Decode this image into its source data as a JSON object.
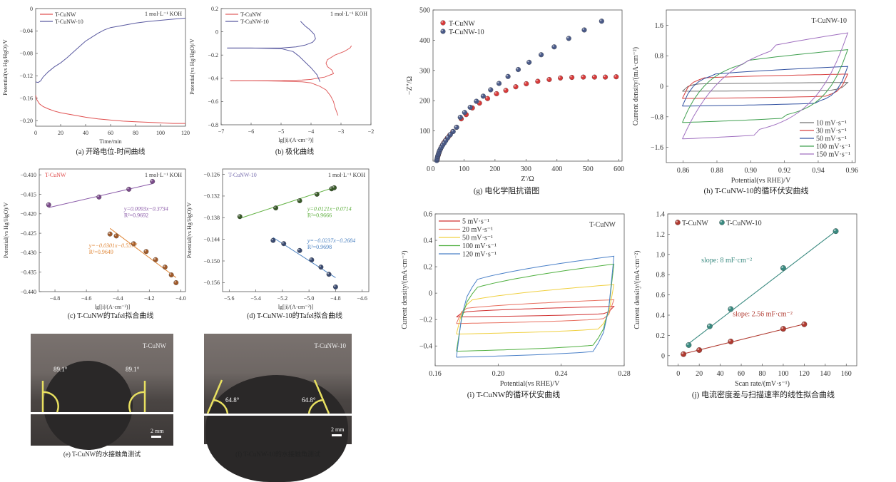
{
  "chart_data": [
    {
      "id": "a",
      "type": "line",
      "caption": "(a) 开路电位-时间曲线",
      "title": "",
      "xlabel": "Time/min",
      "ylabel": "Potential(vs Hg/HgO)/V",
      "annotation": "1 mol·L⁻¹ KOH",
      "xlim": [
        0,
        120
      ],
      "ylim": [
        -0.21,
        0
      ],
      "xticks": [
        0,
        20,
        40,
        60,
        80,
        100,
        120
      ],
      "yticks": [
        0,
        -0.04,
        -0.08,
        -0.12,
        -0.16,
        -0.2
      ],
      "ytick_labels": [
        "0",
        "−0.04",
        "−0.08",
        "−0.12",
        "−0.16",
        "−0.20"
      ],
      "legend": "top-left",
      "series": [
        {
          "name": "T-CuNW",
          "color": "#e05050",
          "x": [
            0,
            1,
            3,
            6,
            10,
            15,
            20,
            30,
            40,
            50,
            60,
            70,
            80,
            90,
            100,
            110,
            120
          ],
          "y": [
            -0.155,
            -0.163,
            -0.17,
            -0.175,
            -0.179,
            -0.183,
            -0.186,
            -0.19,
            -0.194,
            -0.197,
            -0.199,
            -0.201,
            -0.202,
            -0.203,
            -0.204,
            -0.205,
            -0.205
          ]
        },
        {
          "name": "T-CuNW-10",
          "color": "#5a5aa0",
          "x": [
            0,
            2,
            4,
            6,
            10,
            15,
            20,
            25,
            30,
            35,
            40,
            45,
            50,
            55,
            60,
            70,
            80,
            90,
            100,
            110,
            120
          ],
          "y": [
            -0.131,
            -0.132,
            -0.129,
            -0.122,
            -0.113,
            -0.104,
            -0.097,
            -0.088,
            -0.078,
            -0.068,
            -0.058,
            -0.051,
            -0.044,
            -0.038,
            -0.034,
            -0.03,
            -0.026,
            -0.023,
            -0.021,
            -0.019,
            -0.017
          ]
        }
      ]
    },
    {
      "id": "b",
      "type": "line",
      "caption": "(b) 极化曲线",
      "xlabel": "lg[|i|/(A·cm⁻²)]",
      "ylabel": "Potential(vs Hg/HgO)/V",
      "annotation": "1 mol·L⁻¹ KOH",
      "xlim": [
        -7,
        -2
      ],
      "ylim": [
        -0.8,
        0.2
      ],
      "xticks": [
        -7,
        -6,
        -5,
        -4,
        -3,
        -2
      ],
      "xtick_labels": [
        "−7",
        "−6",
        "−5",
        "−4",
        "−3",
        "−2"
      ],
      "yticks": [
        0.2,
        0,
        -0.2,
        -0.4,
        -0.6,
        -0.8
      ],
      "ytick_labels": [
        "0.2",
        "0",
        "−0.2",
        "−0.4",
        "−0.6",
        "−0.8"
      ],
      "legend": "top-left",
      "series": [
        {
          "name": "T-CuNW",
          "color": "#e06060",
          "x": [
            -6.7,
            -6.0,
            -5.0,
            -4.3,
            -4.0,
            -3.8,
            -3.55,
            -3.35,
            -3.25,
            -3.3,
            -3.45,
            -3.5,
            -3.45,
            -3.2,
            -2.9,
            -2.7,
            -2.65
          ],
          "y": [
            -0.42,
            -0.42,
            -0.42,
            -0.415,
            -0.41,
            -0.4,
            -0.39,
            -0.37,
            -0.36,
            -0.33,
            -0.3,
            -0.27,
            -0.24,
            -0.2,
            -0.17,
            -0.14,
            -0.12
          ],
          "x2": [
            -6.7,
            -6.0,
            -5.0,
            -4.3,
            -4.0,
            -3.7,
            -3.5,
            -3.35,
            -3.25,
            -3.2,
            -3.1
          ],
          "y2": [
            -0.42,
            -0.42,
            -0.425,
            -0.43,
            -0.44,
            -0.47,
            -0.5,
            -0.55,
            -0.6,
            -0.65,
            -0.72
          ]
        },
        {
          "name": "T-CuNW-10",
          "color": "#5a5aa0",
          "x": [
            -6.8,
            -6.0,
            -5.0,
            -4.5,
            -4.2,
            -3.95,
            -3.85,
            -3.9,
            -4.05,
            -4.2,
            -4.35
          ],
          "y": [
            -0.14,
            -0.14,
            -0.14,
            -0.13,
            -0.115,
            -0.09,
            -0.06,
            -0.02,
            0.02,
            0.05,
            0.09
          ],
          "x2": [
            -6.8,
            -6.0,
            -5.0,
            -4.6,
            -4.4,
            -4.2,
            -4.0,
            -3.8,
            -3.7
          ],
          "y2": [
            -0.14,
            -0.14,
            -0.145,
            -0.17,
            -0.21,
            -0.26,
            -0.31,
            -0.37,
            -0.43
          ]
        }
      ]
    },
    {
      "id": "c",
      "type": "scatter",
      "caption": "(c) T-CuNW的Tafel拟合曲线",
      "xlabel": "lg[|i|/(A·cm⁻²)]",
      "ylabel": "Potential(vs Hg/HgO)/V",
      "annotation": "1 mol·L⁻¹ KOH",
      "sample_label": "T-CuNW",
      "sample_color": "#e04848",
      "xlim": [
        -4.9,
        -3.97
      ],
      "ylim": [
        -0.44,
        -0.4085
      ],
      "xticks": [
        -4.8,
        -4.6,
        -4.4,
        -4.2,
        -4.0
      ],
      "xtick_labels": [
        "−4.8",
        "−4.6",
        "−4.4",
        "−4.2",
        "−4.0"
      ],
      "yticks": [
        -0.41,
        -0.415,
        -0.42,
        -0.425,
        -0.43,
        -0.435,
        -0.44
      ],
      "ytick_labels": [
        "−0.410",
        "−0.415",
        "−0.420",
        "−0.425",
        "−0.430",
        "−0.435",
        "−0.440"
      ],
      "series": [
        {
          "name": "anodic",
          "color": "#7a4a8a",
          "fit_color": "#8a5aa8",
          "x": [
            -4.84,
            -4.52,
            -4.33,
            -4.18
          ],
          "y": [
            -0.4177,
            -0.4157,
            -0.4137,
            -0.4117
          ],
          "fit": {
            "slope": 0.0093,
            "intercept": -0.3734,
            "x_range": [
              -4.84,
              -4.18
            ]
          },
          "equation": "y=0.0093x−0.3734",
          "r2": "R²=0.9692"
        },
        {
          "name": "cathodic",
          "color": "#a05a2a",
          "fit_color": "#e0883a",
          "x": [
            -4.45,
            -4.41,
            -4.3,
            -4.22,
            -4.16,
            -4.1,
            -4.06,
            -4.03
          ],
          "y": [
            -0.4252,
            -0.4257,
            -0.4277,
            -0.4297,
            -0.4318,
            -0.4337,
            -0.4357,
            -0.4377
          ],
          "fit": {
            "slope": -0.0301,
            "intercept": -0.5577,
            "x_range": [
              -4.45,
              -4.03
            ]
          },
          "equation": "y=−0.0301x−0.5577",
          "r2": "R²=0.9649"
        }
      ]
    },
    {
      "id": "d",
      "type": "scatter",
      "caption": "(d) T-CuNW-10的Tafel拟合曲线",
      "xlabel": "lg[|i|/(A·cm⁻²)]",
      "ylabel": "Potential(vs Hg/HgO)/V",
      "annotation": "1 mol·L⁻¹ KOH",
      "sample_label": "T-CuNW-10",
      "sample_color": "#7a70b0",
      "xlim": [
        -5.65,
        -4.55
      ],
      "ylim": [
        -0.1585,
        -0.1245
      ],
      "xticks": [
        -5.6,
        -5.4,
        -5.2,
        -5.0,
        -4.8,
        -4.6
      ],
      "xtick_labels": [
        "−5.6",
        "−5.4",
        "−5.2",
        "−5.0",
        "−4.8",
        "−4.6"
      ],
      "yticks": [
        -0.126,
        -0.132,
        -0.138,
        -0.144,
        -0.15,
        -0.156
      ],
      "ytick_labels": [
        "−0.126",
        "−0.132",
        "−0.138",
        "−0.144",
        "−0.150",
        "−0.156"
      ],
      "series": [
        {
          "name": "anodic",
          "color": "#3a5a2a",
          "fit_color": "#60b040",
          "x": [
            -5.52,
            -5.25,
            -5.07,
            -4.94,
            -4.83,
            -4.81
          ],
          "y": [
            -0.1377,
            -0.1353,
            -0.1333,
            -0.1315,
            -0.13,
            -0.1297
          ],
          "fit": {
            "slope": 0.0121,
            "intercept": -0.0714,
            "x_range": [
              -5.52,
              -4.81
            ]
          },
          "equation": "y=0.0121x−0.0714",
          "r2": "R²=0.9666"
        },
        {
          "name": "cathodic",
          "color": "#3a4a70",
          "fit_color": "#4a80c0",
          "x": [
            -5.27,
            -5.19,
            -5.07,
            -4.98,
            -4.91,
            -4.85,
            -4.8
          ],
          "y": [
            -0.1443,
            -0.1452,
            -0.1471,
            -0.1497,
            -0.1517,
            -0.1537,
            -0.1572
          ],
          "fit": {
            "slope": -0.0237,
            "intercept": -0.2684,
            "x_range": [
              -5.27,
              -4.8
            ]
          },
          "equation": "y=−0.0237x−0.2684",
          "r2": "R²=0.9698"
        }
      ]
    },
    {
      "id": "g",
      "type": "scatter",
      "caption": "(g) 电化学阻抗谱图",
      "xlabel": "Z′/Ω",
      "ylabel": "−Z″/Ω",
      "xlim": [
        0,
        610
      ],
      "ylim": [
        0,
        500
      ],
      "xticks": [
        0,
        100,
        200,
        300,
        400,
        500,
        600
      ],
      "yticks": [
        100,
        200,
        300,
        400,
        500
      ],
      "legend": "top-left",
      "series": [
        {
          "name": "T-CuNW",
          "color": "#d83a3a",
          "x": [
            13,
            14,
            15,
            17,
            19,
            21,
            24,
            27,
            31,
            35,
            40,
            46,
            54,
            64,
            76,
            91,
            107,
            127,
            150,
            176,
            205,
            235,
            267,
            301,
            338,
            375,
            411,
            448,
            485,
            521,
            556,
            591
          ],
          "y": [
            3,
            8,
            14,
            20,
            27,
            33,
            40,
            47,
            54,
            61,
            68,
            76,
            86,
            98,
            112,
            140,
            154,
            176,
            192,
            207,
            223,
            234,
            246,
            256,
            264,
            270,
            275,
            277,
            278,
            278,
            278,
            279
          ]
        },
        {
          "name": "T-CuNW-10",
          "color": "#4a5a88",
          "x": [
            12,
            13,
            14,
            15,
            17,
            19,
            21,
            24,
            27,
            31,
            36,
            41,
            48,
            56,
            65,
            76,
            88,
            102,
            120,
            140,
            162,
            186,
            213,
            242,
            275,
            310,
            349,
            391,
            438,
            488,
            544
          ],
          "y": [
            2,
            6,
            11,
            16,
            22,
            28,
            34,
            40,
            46,
            53,
            60,
            68,
            78,
            88,
            98,
            112,
            145,
            161,
            178,
            198,
            215,
            236,
            257,
            280,
            303,
            327,
            352,
            378,
            406,
            434,
            463
          ]
        }
      ]
    },
    {
      "id": "h",
      "type": "line",
      "caption": "(h) T-CuNW-10的循环伏安曲线",
      "xlabel": "Potential(vs RHE)/V",
      "ylabel": "Current density/(mA·cm⁻²)",
      "sample_label": "T-CuNW-10",
      "xlim": [
        0.85,
        0.962
      ],
      "ylim": [
        -2.0,
        2.0
      ],
      "xticks": [
        0.86,
        0.88,
        0.9,
        0.92,
        0.94,
        0.96
      ],
      "xtick_labels": [
        "0.86",
        "0.88",
        "0.90",
        "0.92",
        "0.94",
        "0.96"
      ],
      "yticks": [
        1.6,
        0.8,
        0,
        -0.8,
        -1.6
      ],
      "ytick_labels": [
        "1.6",
        "0.8",
        "0",
        "−0.8",
        "−1.6"
      ],
      "legend": "bottom-right",
      "cv_range": [
        0.8595,
        0.9575
      ],
      "series": [
        {
          "name": "10 mV·s⁻¹",
          "color": "#707070",
          "upper": [
            0.05,
            0.1
          ],
          "lower": [
            -0.13,
            -0.08
          ],
          "knee": 0.003
        },
        {
          "name": "30 mV·s⁻¹",
          "color": "#d84040",
          "upper": [
            0.18,
            0.32
          ],
          "lower": [
            -0.32,
            -0.2
          ],
          "knee": 0.004
        },
        {
          "name": "50 mV·s⁻¹",
          "color": "#3050a0",
          "upper": [
            0.2,
            0.52
          ],
          "lower": [
            -0.52,
            -0.35
          ],
          "knee": 0.006
        },
        {
          "name": "100 mV·s⁻¹",
          "color": "#40a050",
          "upper": [
            0.3,
            0.96
          ],
          "lower": [
            -0.95,
            -0.55
          ],
          "knee": 0.012
        },
        {
          "name": "150 mV·s⁻¹",
          "color": "#a070c0",
          "upper": [
            0.3,
            1.4
          ],
          "lower": [
            -1.38,
            -0.85
          ],
          "knee": 0.018
        }
      ]
    },
    {
      "id": "i",
      "type": "line",
      "caption": "(i) T-CuNW的循环伏安曲线",
      "xlabel": "Potential(vs RHE)/V",
      "ylabel": "Current density/(mA·cm⁻²)",
      "sample_label": "T-CuNW",
      "xlim": [
        0.16,
        0.28
      ],
      "ylim": [
        -0.55,
        0.6
      ],
      "xticks": [
        0.16,
        0.2,
        0.24,
        0.28
      ],
      "xtick_labels": [
        "0.16",
        "0.20",
        "0.24",
        "0.28"
      ],
      "yticks": [
        0.6,
        0.4,
        0.2,
        0,
        -0.2,
        -0.4
      ],
      "ytick_labels": [
        "0.6",
        "0.4",
        "0.2",
        "0",
        "−0.2",
        "−0.4"
      ],
      "legend": "top-left",
      "cv_range": [
        0.1735,
        0.2735
      ],
      "series": [
        {
          "name": "5 mV·s⁻¹",
          "color": "#d03030",
          "upper": [
            -0.15,
            -0.1
          ],
          "lower": [
            -0.18,
            -0.14
          ],
          "knee": 0.002
        },
        {
          "name": "20 mV·s⁻¹",
          "color": "#e87060",
          "upper": [
            -0.13,
            -0.05
          ],
          "lower": [
            -0.23,
            -0.17
          ],
          "knee": 0.002
        },
        {
          "name": "50 mV·s⁻¹",
          "color": "#f0d040",
          "upper": [
            -0.09,
            0.065
          ],
          "lower": [
            -0.31,
            -0.24
          ],
          "knee": 0.003
        },
        {
          "name": "100 mV·s⁻¹",
          "color": "#50b040",
          "upper": [
            -0.03,
            0.22
          ],
          "lower": [
            -0.44,
            -0.35
          ],
          "knee": 0.004
        },
        {
          "name": "120 mV·s⁻¹",
          "color": "#4a80c8",
          "upper": [
            0.03,
            0.28
          ],
          "lower": [
            -0.485,
            -0.4
          ],
          "knee": 0.004
        }
      ]
    },
    {
      "id": "j",
      "type": "scatter",
      "caption": "(j) 电流密度差与扫描速率的线性拟合曲线",
      "xlabel": "Scan rate/(mV·s⁻¹)",
      "ylabel": "Current density/(mA·cm⁻²)",
      "xlim": [
        -10,
        170
      ],
      "ylim": [
        -0.1,
        1.4
      ],
      "xticks": [
        0,
        20,
        40,
        60,
        80,
        100,
        120,
        140,
        160
      ],
      "yticks": [
        0,
        0.2,
        0.4,
        0.6,
        0.8,
        1.0,
        1.2,
        1.4
      ],
      "ytick_labels": [
        "0",
        "0.2",
        "0.4",
        "0.6",
        "0.8",
        "1.0",
        "1.2",
        "1.4"
      ],
      "legend": "top-left",
      "series": [
        {
          "name": "T-CuNW",
          "color": "#b03a30",
          "x": [
            5,
            20,
            50,
            100,
            120
          ],
          "y": [
            0.015,
            0.055,
            0.14,
            0.265,
            0.31
          ],
          "fit": {
            "x_range": [
              5,
              120
            ],
            "y_range": [
              0.018,
              0.312
            ]
          },
          "annotation": "slope: 2.56 mF·cm⁻²"
        },
        {
          "name": "T-CuNW-10",
          "color": "#3a8a80",
          "x": [
            10,
            30,
            50,
            100,
            150
          ],
          "y": [
            0.105,
            0.29,
            0.46,
            0.865,
            1.23
          ],
          "fit": {
            "x_range": [
              10,
              150
            ],
            "y_range": [
              0.12,
              1.23
            ]
          },
          "annotation": "slope: 8 mF·cm⁻²"
        }
      ]
    }
  ],
  "photos": [
    {
      "id": "e",
      "caption": "(e) T-CuNW的水接触角测试",
      "label": "T-CuNW",
      "angle_left": "89.1°",
      "angle_right": "89.1°",
      "scale": "2 mm",
      "contact_angle": 89.1
    },
    {
      "id": "f",
      "caption": "(f) T-CuNW-10的水接触角测试",
      "label": "T-CuNW-10",
      "angle_left": "64.8°",
      "angle_right": "64.8°",
      "scale": "2 mm",
      "contact_angle": 64.8
    }
  ]
}
